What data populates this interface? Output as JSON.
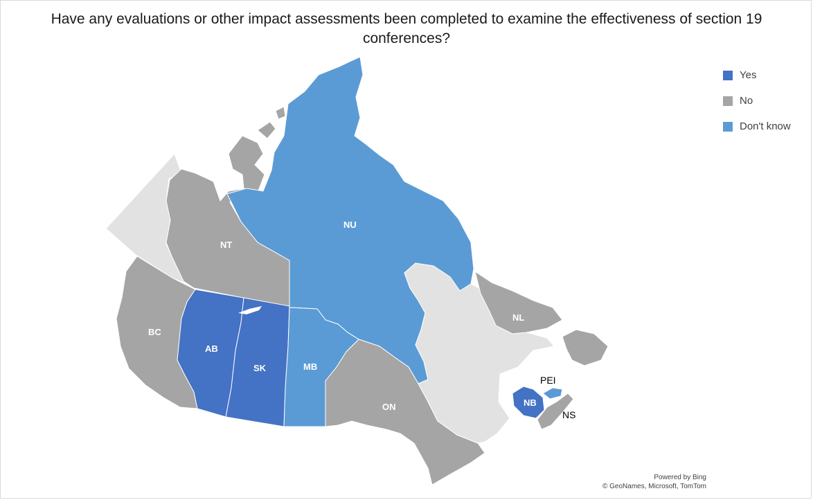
{
  "title": "Have any evaluations or other impact assessments been completed to examine the effectiveness of section 19 conferences?",
  "legend": [
    {
      "label": "Yes",
      "color": "#4472c4"
    },
    {
      "label": "No",
      "color": "#a5a5a5"
    },
    {
      "label": "Don't know",
      "color": "#5b9bd5"
    }
  ],
  "colors": {
    "yes": "#4472c4",
    "no": "#a5a5a5",
    "dont_know": "#5b9bd5",
    "no_data": "#e2e2e2"
  },
  "regions": {
    "NT": {
      "label": "NT",
      "response": "No"
    },
    "NU": {
      "label": "NU",
      "response": "Don't know"
    },
    "BC": {
      "label": "BC",
      "response": "No"
    },
    "AB": {
      "label": "AB",
      "response": "Yes"
    },
    "SK": {
      "label": "SK",
      "response": "Yes"
    },
    "MB": {
      "label": "MB",
      "response": "Don't know"
    },
    "ON": {
      "label": "ON",
      "response": "No"
    },
    "NL": {
      "label": "NL",
      "response": "No"
    },
    "NB": {
      "label": "NB",
      "response": "Yes"
    },
    "PEI": {
      "label": "PEI",
      "response": "Don't know"
    },
    "NS": {
      "label": "NS",
      "response": "No"
    }
  },
  "credit": {
    "line1": "Powered by Bing",
    "line2": "© GeoNames, Microsoft, TomTom"
  }
}
